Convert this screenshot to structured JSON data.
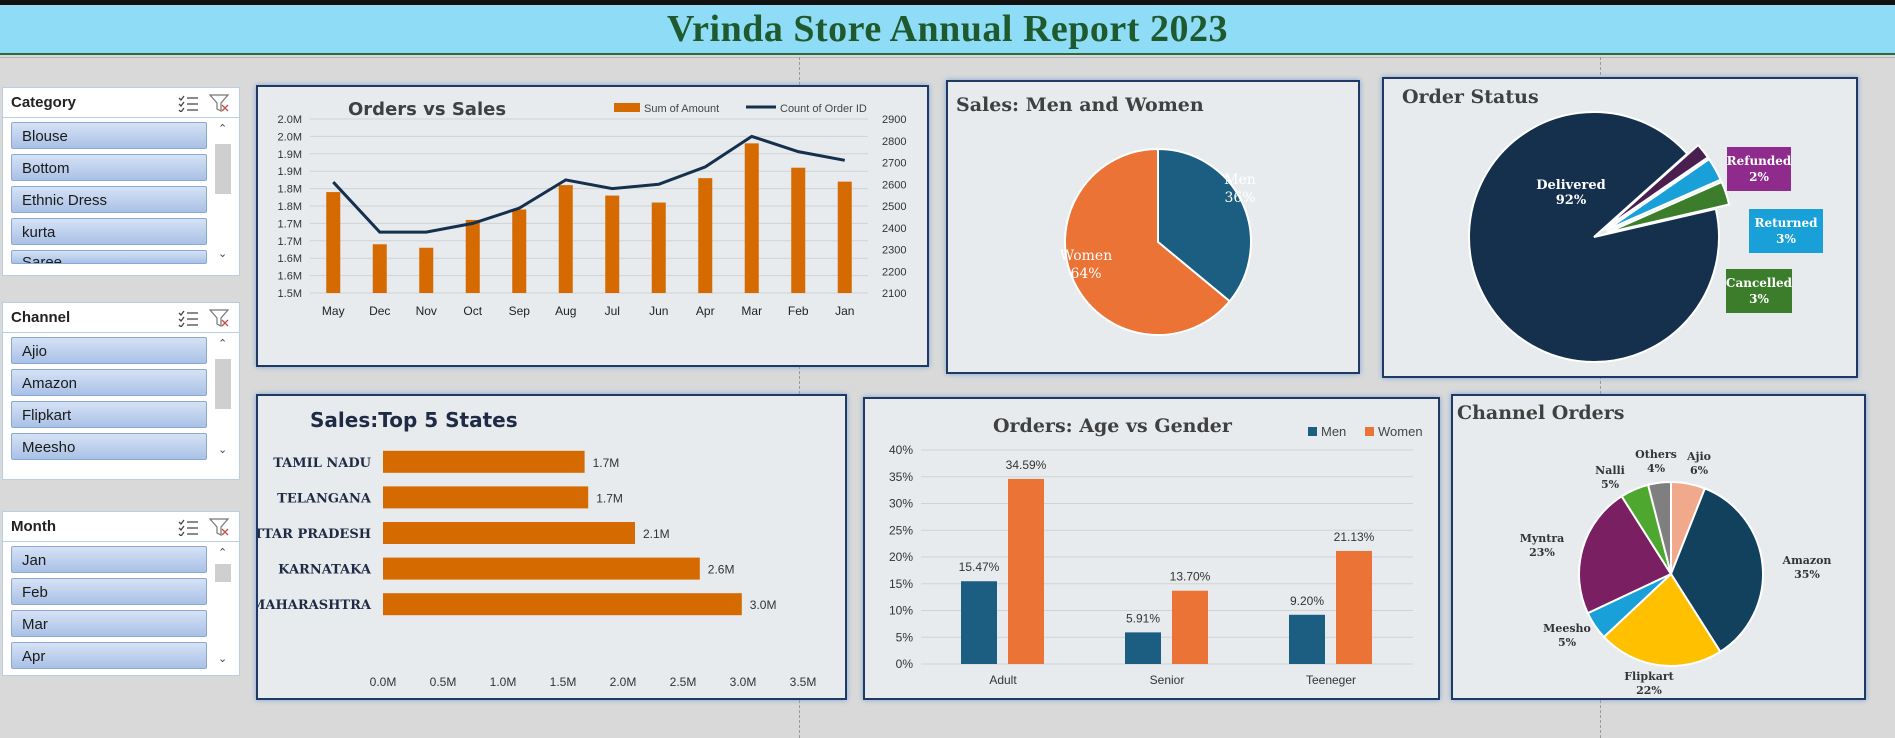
{
  "title": "Vrinda Store Annual  Report 2023",
  "colors": {
    "orange": "#d46a00",
    "navy": "#14304d",
    "teal": "#1b5e82",
    "orange_light": "#ea7335"
  },
  "slicers": [
    {
      "title": "Category",
      "items": [
        "Blouse",
        "Bottom",
        "Ethnic Dress",
        "kurta",
        "Saree"
      ]
    },
    {
      "title": "Channel",
      "items": [
        "Ajio",
        "Amazon",
        "Flipkart",
        "Meesho"
      ]
    },
    {
      "title": "Month",
      "items": [
        "Jan",
        "Feb",
        "Mar",
        "Apr"
      ]
    }
  ],
  "chart_data": [
    {
      "type": "bar",
      "title": "Orders vs Sales",
      "categories": [
        "May",
        "Dec",
        "Nov",
        "Oct",
        "Sep",
        "Aug",
        "Jul",
        "Jun",
        "Apr",
        "Mar",
        "Feb",
        "Jan"
      ],
      "series": [
        {
          "name": "Sum of Amount",
          "values": [
            1.79,
            1.64,
            1.63,
            1.71,
            1.74,
            1.81,
            1.78,
            1.76,
            1.83,
            1.93,
            1.86,
            1.82
          ]
        },
        {
          "name": "Count of Order ID",
          "values": [
            2610,
            2380,
            2380,
            2420,
            2490,
            2620,
            2580,
            2600,
            2680,
            2820,
            2750,
            2710
          ]
        }
      ],
      "y_ticks": [
        "1.5M",
        "1.6M",
        "1.6M",
        "1.7M",
        "1.7M",
        "1.8M",
        "1.8M",
        "1.9M",
        "1.9M",
        "2.0M",
        "2.0M"
      ],
      "y2_ticks": [
        "2100",
        "2200",
        "2300",
        "2400",
        "2500",
        "2600",
        "2700",
        "2800",
        "2900"
      ],
      "ylim": [
        1.5,
        2.0
      ],
      "y2lim": [
        2100,
        2900
      ],
      "legend": "top-right"
    },
    {
      "type": "pie",
      "title": "Sales: Men and Women",
      "slices": [
        {
          "label": "Men",
          "value": 36,
          "pct": "36%",
          "color": "#1b5e82"
        },
        {
          "label": "Women",
          "value": 64,
          "pct": "64%",
          "color": "#ea7335"
        }
      ]
    },
    {
      "type": "pie",
      "title": "Order Status",
      "slices": [
        {
          "label": "Delivered",
          "value": 92,
          "pct": "92%",
          "color": "#14304d"
        },
        {
          "label": "Refunded",
          "value": 2,
          "pct": "2%",
          "color": "#4a1e4f"
        },
        {
          "label": "Returned",
          "value": 3,
          "pct": "3%",
          "color": "#1aa0d8"
        },
        {
          "label": "Cancelled",
          "value": 3,
          "pct": "3%",
          "color": "#3b7d2a"
        }
      ]
    },
    {
      "type": "bar",
      "title": "Sales:Top 5 States",
      "categories": [
        "TAMIL NADU",
        "TELANGANA",
        "UTTAR PRADESH",
        "KARNATAKA",
        "MAHARASHTRA"
      ],
      "values": [
        1.68,
        1.71,
        2.1,
        2.64,
        2.99
      ],
      "value_labels": [
        "1.7M",
        "1.7M",
        "2.1M",
        "2.6M",
        "3.0M"
      ],
      "x_ticks": [
        "0.0M",
        "0.5M",
        "1.0M",
        "1.5M",
        "2.0M",
        "2.5M",
        "3.0M",
        "3.5M"
      ],
      "xlim": [
        0,
        3.5
      ]
    },
    {
      "type": "bar",
      "title": "Orders: Age vs Gender",
      "categories": [
        "Adult",
        "Senior",
        "Teeneger"
      ],
      "series": [
        {
          "name": "Men",
          "values": [
            15.47,
            5.91,
            9.2
          ],
          "labels": [
            "15.47%",
            "5.91%",
            "9.20%"
          ],
          "color": "#1b5e82"
        },
        {
          "name": "Women",
          "values": [
            34.59,
            13.7,
            21.13
          ],
          "labels": [
            "34.59%",
            "13.70%",
            "21.13%"
          ],
          "color": "#ea7335"
        }
      ],
      "y_ticks": [
        "0%",
        "5%",
        "10%",
        "15%",
        "20%",
        "25%",
        "30%",
        "35%",
        "40%"
      ],
      "ylim": [
        0,
        40
      ],
      "legend": "top-right"
    },
    {
      "type": "pie",
      "title": "Channel  Orders",
      "slices": [
        {
          "label": "Ajio",
          "value": 6,
          "pct": "6%",
          "color": "#f0a98a"
        },
        {
          "label": "Amazon",
          "value": 35,
          "pct": "35%",
          "color": "#12415e"
        },
        {
          "label": "Flipkart",
          "value": 22,
          "pct": "22%",
          "color": "#ffc000"
        },
        {
          "label": "Meesho",
          "value": 5,
          "pct": "5%",
          "color": "#1aa0d8"
        },
        {
          "label": "Myntra",
          "value": 23,
          "pct": "23%",
          "color": "#7a1f62"
        },
        {
          "label": "Nalli",
          "value": 5,
          "pct": "5%",
          "color": "#4ea72e"
        },
        {
          "label": "Others",
          "value": 4,
          "pct": "4%",
          "color": "#7f7f7f"
        }
      ]
    }
  ]
}
